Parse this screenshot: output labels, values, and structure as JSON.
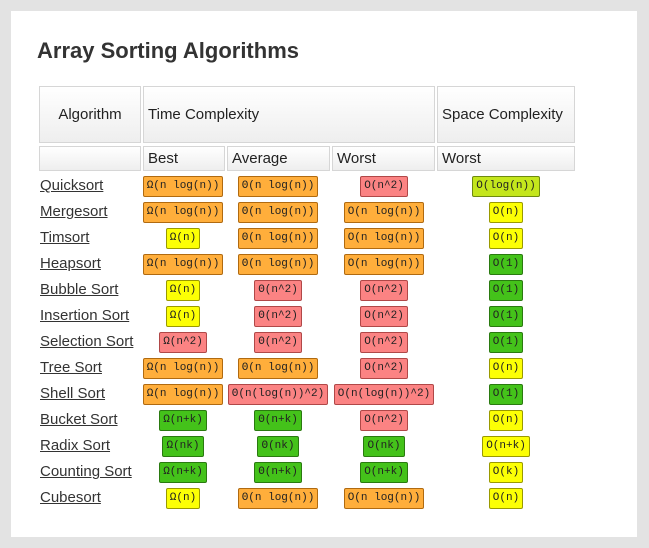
{
  "title": "Array Sorting Algorithms",
  "headers": {
    "algorithm": "Algorithm",
    "time_complexity": "Time Complexity",
    "space_complexity": "Space Complexity",
    "best": "Best",
    "average": "Average",
    "worst": "Worst",
    "space_worst": "Worst"
  },
  "colors": {
    "green": "#44c21a",
    "lime": "#c4e61c",
    "yellow": "#fcff05",
    "orange": "#ffae3b",
    "red": "#fb8383"
  },
  "rows": [
    {
      "name": "Quicksort",
      "best": {
        "t": "Ω(n log(n))",
        "c": "orange"
      },
      "average": {
        "t": "Θ(n log(n))",
        "c": "orange"
      },
      "worst": {
        "t": "O(n^2)",
        "c": "red"
      },
      "space": {
        "t": "O(log(n))",
        "c": "lime"
      }
    },
    {
      "name": "Mergesort",
      "best": {
        "t": "Ω(n log(n))",
        "c": "orange"
      },
      "average": {
        "t": "Θ(n log(n))",
        "c": "orange"
      },
      "worst": {
        "t": "O(n log(n))",
        "c": "orange"
      },
      "space": {
        "t": "O(n)",
        "c": "yellow"
      }
    },
    {
      "name": "Timsort",
      "best": {
        "t": "Ω(n)",
        "c": "yellow"
      },
      "average": {
        "t": "Θ(n log(n))",
        "c": "orange"
      },
      "worst": {
        "t": "O(n log(n))",
        "c": "orange"
      },
      "space": {
        "t": "O(n)",
        "c": "yellow"
      }
    },
    {
      "name": "Heapsort",
      "best": {
        "t": "Ω(n log(n))",
        "c": "orange"
      },
      "average": {
        "t": "Θ(n log(n))",
        "c": "orange"
      },
      "worst": {
        "t": "O(n log(n))",
        "c": "orange"
      },
      "space": {
        "t": "O(1)",
        "c": "green"
      }
    },
    {
      "name": "Bubble Sort",
      "best": {
        "t": "Ω(n)",
        "c": "yellow"
      },
      "average": {
        "t": "Θ(n^2)",
        "c": "red"
      },
      "worst": {
        "t": "O(n^2)",
        "c": "red"
      },
      "space": {
        "t": "O(1)",
        "c": "green"
      }
    },
    {
      "name": "Insertion Sort",
      "best": {
        "t": "Ω(n)",
        "c": "yellow"
      },
      "average": {
        "t": "Θ(n^2)",
        "c": "red"
      },
      "worst": {
        "t": "O(n^2)",
        "c": "red"
      },
      "space": {
        "t": "O(1)",
        "c": "green"
      }
    },
    {
      "name": "Selection Sort",
      "best": {
        "t": "Ω(n^2)",
        "c": "red"
      },
      "average": {
        "t": "Θ(n^2)",
        "c": "red"
      },
      "worst": {
        "t": "O(n^2)",
        "c": "red"
      },
      "space": {
        "t": "O(1)",
        "c": "green"
      }
    },
    {
      "name": "Tree Sort",
      "best": {
        "t": "Ω(n log(n))",
        "c": "orange"
      },
      "average": {
        "t": "Θ(n log(n))",
        "c": "orange"
      },
      "worst": {
        "t": "O(n^2)",
        "c": "red"
      },
      "space": {
        "t": "O(n)",
        "c": "yellow"
      }
    },
    {
      "name": "Shell Sort",
      "best": {
        "t": "Ω(n log(n))",
        "c": "orange"
      },
      "average": {
        "t": "Θ(n(log(n))^2)",
        "c": "red"
      },
      "worst": {
        "t": "O(n(log(n))^2)",
        "c": "red"
      },
      "space": {
        "t": "O(1)",
        "c": "green"
      }
    },
    {
      "name": "Bucket Sort",
      "best": {
        "t": "Ω(n+k)",
        "c": "green"
      },
      "average": {
        "t": "Θ(n+k)",
        "c": "green"
      },
      "worst": {
        "t": "O(n^2)",
        "c": "red"
      },
      "space": {
        "t": "O(n)",
        "c": "yellow"
      }
    },
    {
      "name": "Radix Sort",
      "best": {
        "t": "Ω(nk)",
        "c": "green"
      },
      "average": {
        "t": "Θ(nk)",
        "c": "green"
      },
      "worst": {
        "t": "O(nk)",
        "c": "green"
      },
      "space": {
        "t": "O(n+k)",
        "c": "yellow"
      }
    },
    {
      "name": "Counting Sort",
      "best": {
        "t": "Ω(n+k)",
        "c": "green"
      },
      "average": {
        "t": "Θ(n+k)",
        "c": "green"
      },
      "worst": {
        "t": "O(n+k)",
        "c": "green"
      },
      "space": {
        "t": "O(k)",
        "c": "yellow"
      }
    },
    {
      "name": "Cubesort",
      "best": {
        "t": "Ω(n)",
        "c": "yellow"
      },
      "average": {
        "t": "Θ(n log(n))",
        "c": "orange"
      },
      "worst": {
        "t": "O(n log(n))",
        "c": "orange"
      },
      "space": {
        "t": "O(n)",
        "c": "yellow"
      }
    }
  ]
}
